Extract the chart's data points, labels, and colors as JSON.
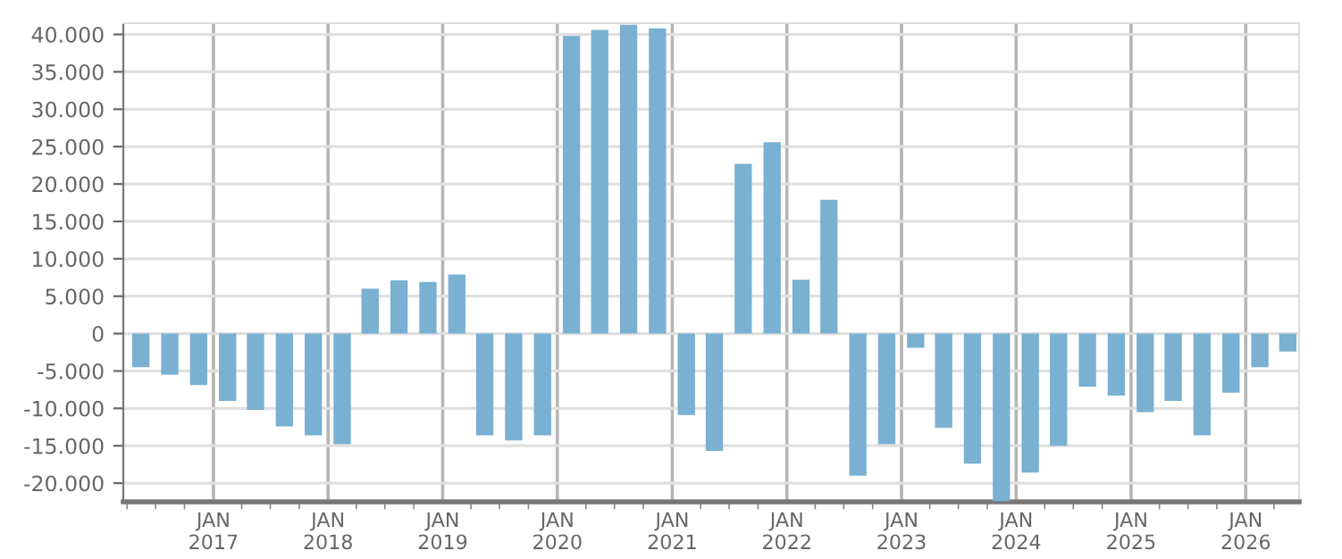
{
  "chart_data": {
    "type": "bar",
    "x": [
      "2016-05-15",
      "2016-08-15",
      "2016-11-15",
      "2017-02-15",
      "2017-05-15",
      "2017-08-15",
      "2017-11-15",
      "2018-02-15",
      "2018-05-15",
      "2018-08-15",
      "2018-11-15",
      "2019-02-15",
      "2019-05-15",
      "2019-08-15",
      "2019-11-15",
      "2020-02-15",
      "2020-05-15",
      "2020-08-15",
      "2020-11-15",
      "2021-02-15",
      "2021-05-15",
      "2021-08-15",
      "2021-11-15",
      "2022-02-15",
      "2022-05-15",
      "2022-08-15",
      "2022-11-15",
      "2023-02-15",
      "2023-05-15",
      "2023-08-15",
      "2023-11-15",
      "2024-02-15",
      "2024-05-15",
      "2024-08-15",
      "2024-11-15",
      "2025-02-15",
      "2025-05-15",
      "2025-08-15",
      "2025-11-15",
      "2026-02-15",
      "2026-05-15"
    ],
    "values": [
      -4500,
      -5500,
      -6900,
      -9000,
      -10200,
      -12400,
      -13600,
      -14800,
      6000,
      7100,
      6900,
      7900,
      -13600,
      -14300,
      -13600,
      39800,
      40600,
      41300,
      40800,
      -10900,
      -15700,
      22700,
      25600,
      7200,
      17900,
      -19000,
      -14800,
      -1900,
      -12600,
      -17400,
      -22400,
      -18600,
      -15000,
      -7100,
      -8300,
      -10500,
      -9000,
      -13600,
      -7900,
      -4500,
      -2400
    ],
    "color": "#7ab0d2",
    "xlim": [
      "2016-03-20",
      "2026-06-20"
    ],
    "xticks": [
      {
        "value": "2017-01-01",
        "label": "JAN\n2017"
      },
      {
        "value": "2018-01-01",
        "label": "JAN\n2018"
      },
      {
        "value": "2019-01-01",
        "label": "JAN\n2019"
      },
      {
        "value": "2020-01-01",
        "label": "JAN\n2020"
      },
      {
        "value": "2021-01-01",
        "label": "JAN\n2021"
      },
      {
        "value": "2022-01-01",
        "label": "JAN\n2022"
      },
      {
        "value": "2023-01-01",
        "label": "JAN\n2023"
      },
      {
        "value": "2024-01-01",
        "label": "JAN\n2024"
      },
      {
        "value": "2025-01-01",
        "label": "JAN\n2025"
      },
      {
        "value": "2026-01-01",
        "label": "JAN\n2026"
      }
    ],
    "ylim": [
      -22500,
      41500
    ],
    "yticks": [
      {
        "value": -20000,
        "label": "-20.000"
      },
      {
        "value": -15000,
        "label": "-15.000"
      },
      {
        "value": -10000,
        "label": "-10.000"
      },
      {
        "value": -5000,
        "label": "-5.000"
      },
      {
        "value": 0,
        "label": "0"
      },
      {
        "value": 5000,
        "label": "5.000"
      },
      {
        "value": 10000,
        "label": "10.000"
      },
      {
        "value": 15000,
        "label": "15.000"
      },
      {
        "value": 20000,
        "label": "20.000"
      },
      {
        "value": 25000,
        "label": "25.000"
      },
      {
        "value": 30000,
        "label": "30.000"
      },
      {
        "value": 35000,
        "label": "35.000"
      },
      {
        "value": 40000,
        "label": "40.000"
      }
    ],
    "grid": true
  }
}
